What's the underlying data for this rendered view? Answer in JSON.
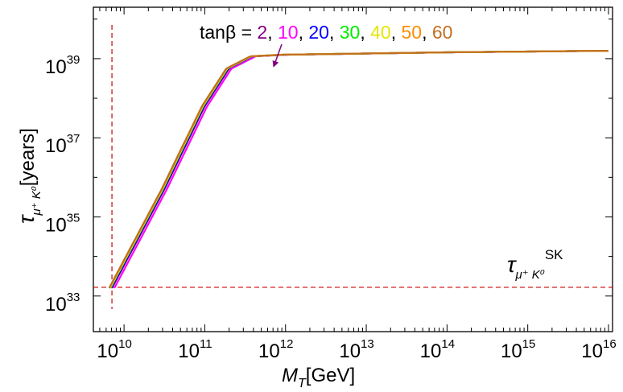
{
  "chart_data": {
    "type": "line",
    "xlabel": {
      "main": "M",
      "sub": "T",
      "unit": "[GeV]"
    },
    "ylabel": {
      "main": "τ",
      "sub": "μ⁺ K⁰",
      "unit": "[years]"
    },
    "xscale": "log",
    "yscale": "log",
    "xlim_log10": [
      9.62,
      16.05
    ],
    "ylim_log10": [
      32.1,
      40.3
    ],
    "x_ticks": [
      {
        "base": "10",
        "exp": "10",
        "log10": 10
      },
      {
        "base": "10",
        "exp": "11",
        "log10": 11
      },
      {
        "base": "10",
        "exp": "12",
        "log10": 12
      },
      {
        "base": "10",
        "exp": "13",
        "log10": 13
      },
      {
        "base": "10",
        "exp": "14",
        "log10": 14
      },
      {
        "base": "10",
        "exp": "15",
        "log10": 15
      },
      {
        "base": "10",
        "exp": "16",
        "log10": 16
      }
    ],
    "y_ticks": [
      {
        "base": "10",
        "exp": "33",
        "log10": 33
      },
      {
        "base": "10",
        "exp": "35",
        "log10": 35
      },
      {
        "base": "10",
        "exp": "37",
        "log10": 37
      },
      {
        "base": "10",
        "exp": "39",
        "log10": 39
      }
    ],
    "legend": {
      "prefix": "tanβ = ",
      "entries": [
        {
          "label": "2",
          "color": "#800080"
        },
        {
          "label": "10",
          "color": "#ff00ff"
        },
        {
          "label": "20",
          "color": "#0000ff"
        },
        {
          "label": "30",
          "color": "#00ff00"
        },
        {
          "label": "40",
          "color": "#ffff00"
        },
        {
          "label": "50",
          "color": "#ff8c00"
        },
        {
          "label": "60",
          "color": "#c07020"
        }
      ]
    },
    "series": [
      {
        "name": "2",
        "color": "#800080",
        "offset": 0.0,
        "log_x": [
          9.85,
          10.5,
          11.0,
          11.3,
          11.6,
          12.0,
          13.0,
          14.0,
          15.0,
          16.0
        ],
        "log_y": [
          33.2,
          35.7,
          37.8,
          38.75,
          39.06,
          39.1,
          39.13,
          39.16,
          39.18,
          39.2
        ]
      },
      {
        "name": "10",
        "color": "#ff00ff",
        "offset": 0.03,
        "log_x": [
          9.85,
          10.5,
          11.0,
          11.3,
          11.6,
          12.0,
          13.0,
          14.0,
          15.0,
          16.0
        ],
        "log_y": [
          33.2,
          35.7,
          37.8,
          38.75,
          39.06,
          39.1,
          39.13,
          39.16,
          39.18,
          39.2
        ]
      },
      {
        "name": "20",
        "color": "#0000ff",
        "offset": -0.01,
        "log_x": [
          9.85,
          10.5,
          11.0,
          11.3,
          11.6,
          12.0,
          13.0,
          14.0,
          15.0,
          16.0
        ],
        "log_y": [
          33.2,
          35.7,
          37.8,
          38.75,
          39.06,
          39.1,
          39.13,
          39.16,
          39.18,
          39.2
        ]
      },
      {
        "name": "30",
        "color": "#00ff00",
        "offset": -0.02,
        "log_x": [
          9.85,
          10.5,
          11.0,
          11.3,
          11.6,
          12.0,
          13.0,
          14.0,
          15.0,
          16.0
        ],
        "log_y": [
          33.2,
          35.7,
          37.8,
          38.75,
          39.06,
          39.1,
          39.13,
          39.16,
          39.18,
          39.2
        ]
      },
      {
        "name": "40",
        "color": "#ffff00",
        "offset": -0.025,
        "log_x": [
          9.85,
          10.5,
          11.0,
          11.3,
          11.6,
          12.0,
          13.0,
          14.0,
          15.0,
          16.0
        ],
        "log_y": [
          33.2,
          35.7,
          37.8,
          38.75,
          39.06,
          39.1,
          39.13,
          39.16,
          39.18,
          39.2
        ]
      },
      {
        "name": "50",
        "color": "#ff8c00",
        "offset": -0.03,
        "log_x": [
          9.85,
          10.5,
          11.0,
          11.3,
          11.6,
          12.0,
          13.0,
          14.0,
          15.0,
          16.0
        ],
        "log_y": [
          33.2,
          35.7,
          37.8,
          38.75,
          39.06,
          39.1,
          39.13,
          39.16,
          39.18,
          39.2
        ]
      },
      {
        "name": "60",
        "color": "#c07020",
        "offset": -0.035,
        "log_x": [
          9.85,
          10.5,
          11.0,
          11.3,
          11.6,
          12.0,
          13.0,
          14.0,
          15.0,
          16.0
        ],
        "log_y": [
          33.2,
          35.7,
          37.8,
          38.75,
          39.06,
          39.1,
          39.13,
          39.16,
          39.18,
          39.2
        ]
      }
    ],
    "sk_bound": {
      "label_main": "τ",
      "label_sub": "μ⁺ K⁰",
      "label_sup": "SK",
      "log10_value": 33.22,
      "color": "#cc0000",
      "style": "dashed"
    },
    "vertical_marker": {
      "log10_x": 9.85,
      "color": "#cc0000",
      "style": "dashed"
    },
    "grid": false
  }
}
